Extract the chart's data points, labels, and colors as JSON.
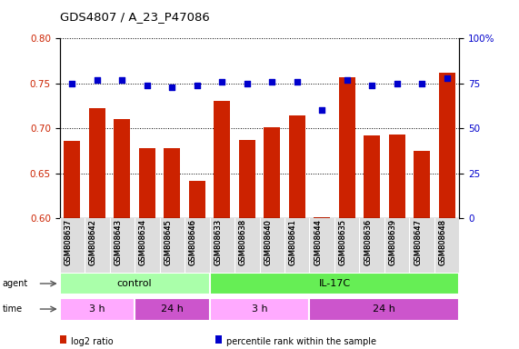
{
  "title": "GDS4807 / A_23_P47086",
  "samples": [
    "GSM808637",
    "GSM808642",
    "GSM808643",
    "GSM808634",
    "GSM808645",
    "GSM808646",
    "GSM808633",
    "GSM808638",
    "GSM808640",
    "GSM808641",
    "GSM808644",
    "GSM808635",
    "GSM808636",
    "GSM808639",
    "GSM808647",
    "GSM808648"
  ],
  "log2_ratio": [
    0.686,
    0.722,
    0.71,
    0.678,
    0.678,
    0.641,
    0.73,
    0.687,
    0.701,
    0.714,
    0.601,
    0.757,
    0.692,
    0.693,
    0.675,
    0.762
  ],
  "percentile": [
    75,
    77,
    77,
    74,
    73,
    74,
    76,
    75,
    76,
    76,
    60,
    77,
    74,
    75,
    75,
    78
  ],
  "bar_color": "#cc2200",
  "dot_color": "#0000cc",
  "ylim_left": [
    0.6,
    0.8
  ],
  "ylim_right": [
    0,
    100
  ],
  "yticks_left": [
    0.6,
    0.65,
    0.7,
    0.75,
    0.8
  ],
  "yticks_right": [
    0,
    25,
    50,
    75,
    100
  ],
  "ytick_labels_right": [
    "0",
    "25",
    "50",
    "75",
    "100%"
  ],
  "agent_groups": [
    {
      "label": "control",
      "start": 0,
      "end": 6,
      "color": "#aaffaa"
    },
    {
      "label": "IL-17C",
      "start": 6,
      "end": 16,
      "color": "#66ee55"
    }
  ],
  "time_groups": [
    {
      "label": "3 h",
      "start": 0,
      "end": 3,
      "color": "#ffaaff"
    },
    {
      "label": "24 h",
      "start": 3,
      "end": 6,
      "color": "#cc55cc"
    },
    {
      "label": "3 h",
      "start": 6,
      "end": 10,
      "color": "#ffaaff"
    },
    {
      "label": "24 h",
      "start": 10,
      "end": 16,
      "color": "#cc55cc"
    }
  ],
  "legend_items": [
    {
      "color": "#cc2200",
      "label": "log2 ratio"
    },
    {
      "color": "#0000cc",
      "label": "percentile rank within the sample"
    }
  ],
  "fig_width": 5.71,
  "fig_height": 3.84,
  "dpi": 100
}
